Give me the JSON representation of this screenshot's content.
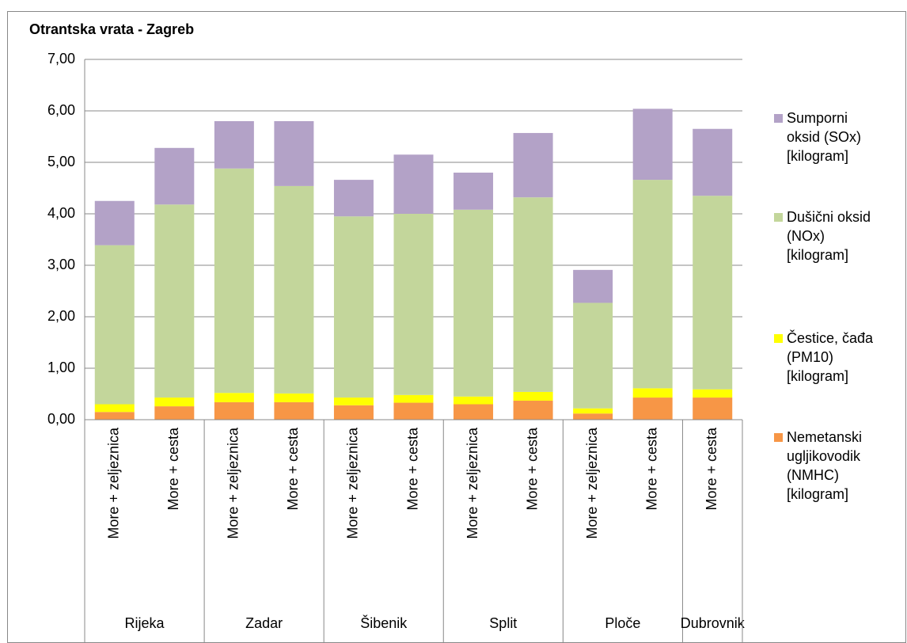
{
  "chart_data": {
    "type": "stacked_bar",
    "title": "Otrantska vrata - Zagreb",
    "categories": [
      "More + zeljeznica",
      "More + cesta",
      "More + zeljeznica",
      "More + cesta",
      "More + zeljeznica",
      "More + cesta",
      "More + zeljeznica",
      "More + cesta",
      "More + zeljeznica",
      "More + cesta",
      "More + cesta"
    ],
    "groups": [
      {
        "label": "Rijeka",
        "size": 2
      },
      {
        "label": "Zadar",
        "size": 2
      },
      {
        "label": "Šibenik",
        "size": 2
      },
      {
        "label": "Split",
        "size": 2
      },
      {
        "label": "Ploče",
        "size": 2
      },
      {
        "label": "Dubrovnik",
        "size": 1
      }
    ],
    "series": [
      {
        "name": "Nemetanski ugljikovodik (NMHC) [kilogram]",
        "color": "#f79646",
        "values": [
          0.15,
          0.26,
          0.34,
          0.34,
          0.28,
          0.33,
          0.3,
          0.37,
          0.12,
          0.43,
          0.43
        ]
      },
      {
        "name": "Čestice, čađa (PM10) [kilogram]",
        "color": "#ffff00",
        "values": [
          0.15,
          0.17,
          0.18,
          0.17,
          0.15,
          0.15,
          0.15,
          0.17,
          0.1,
          0.18,
          0.16
        ]
      },
      {
        "name": "Dušični oksid (NOx) [kilogram]",
        "color": "#c3d69b",
        "values": [
          3.09,
          3.75,
          4.36,
          4.03,
          3.52,
          3.52,
          3.63,
          3.78,
          2.05,
          4.05,
          3.76
        ]
      },
      {
        "name": "Sumporni oksid (SOx) [kilogram]",
        "color": "#b3a2c7",
        "values": [
          0.86,
          1.1,
          0.92,
          1.26,
          0.71,
          1.15,
          0.72,
          1.25,
          0.64,
          1.38,
          1.3
        ]
      }
    ],
    "ylim": [
      0,
      7
    ],
    "yticks": [
      {
        "value": 0,
        "label": "0,00"
      },
      {
        "value": 1,
        "label": "1,00"
      },
      {
        "value": 2,
        "label": "2,00"
      },
      {
        "value": 3,
        "label": "3,00"
      },
      {
        "value": 4,
        "label": "4,00"
      },
      {
        "value": 5,
        "label": "5,00"
      },
      {
        "value": 6,
        "label": "6,00"
      },
      {
        "value": 7,
        "label": "7,00"
      }
    ],
    "grid": true,
    "legend": "right"
  }
}
